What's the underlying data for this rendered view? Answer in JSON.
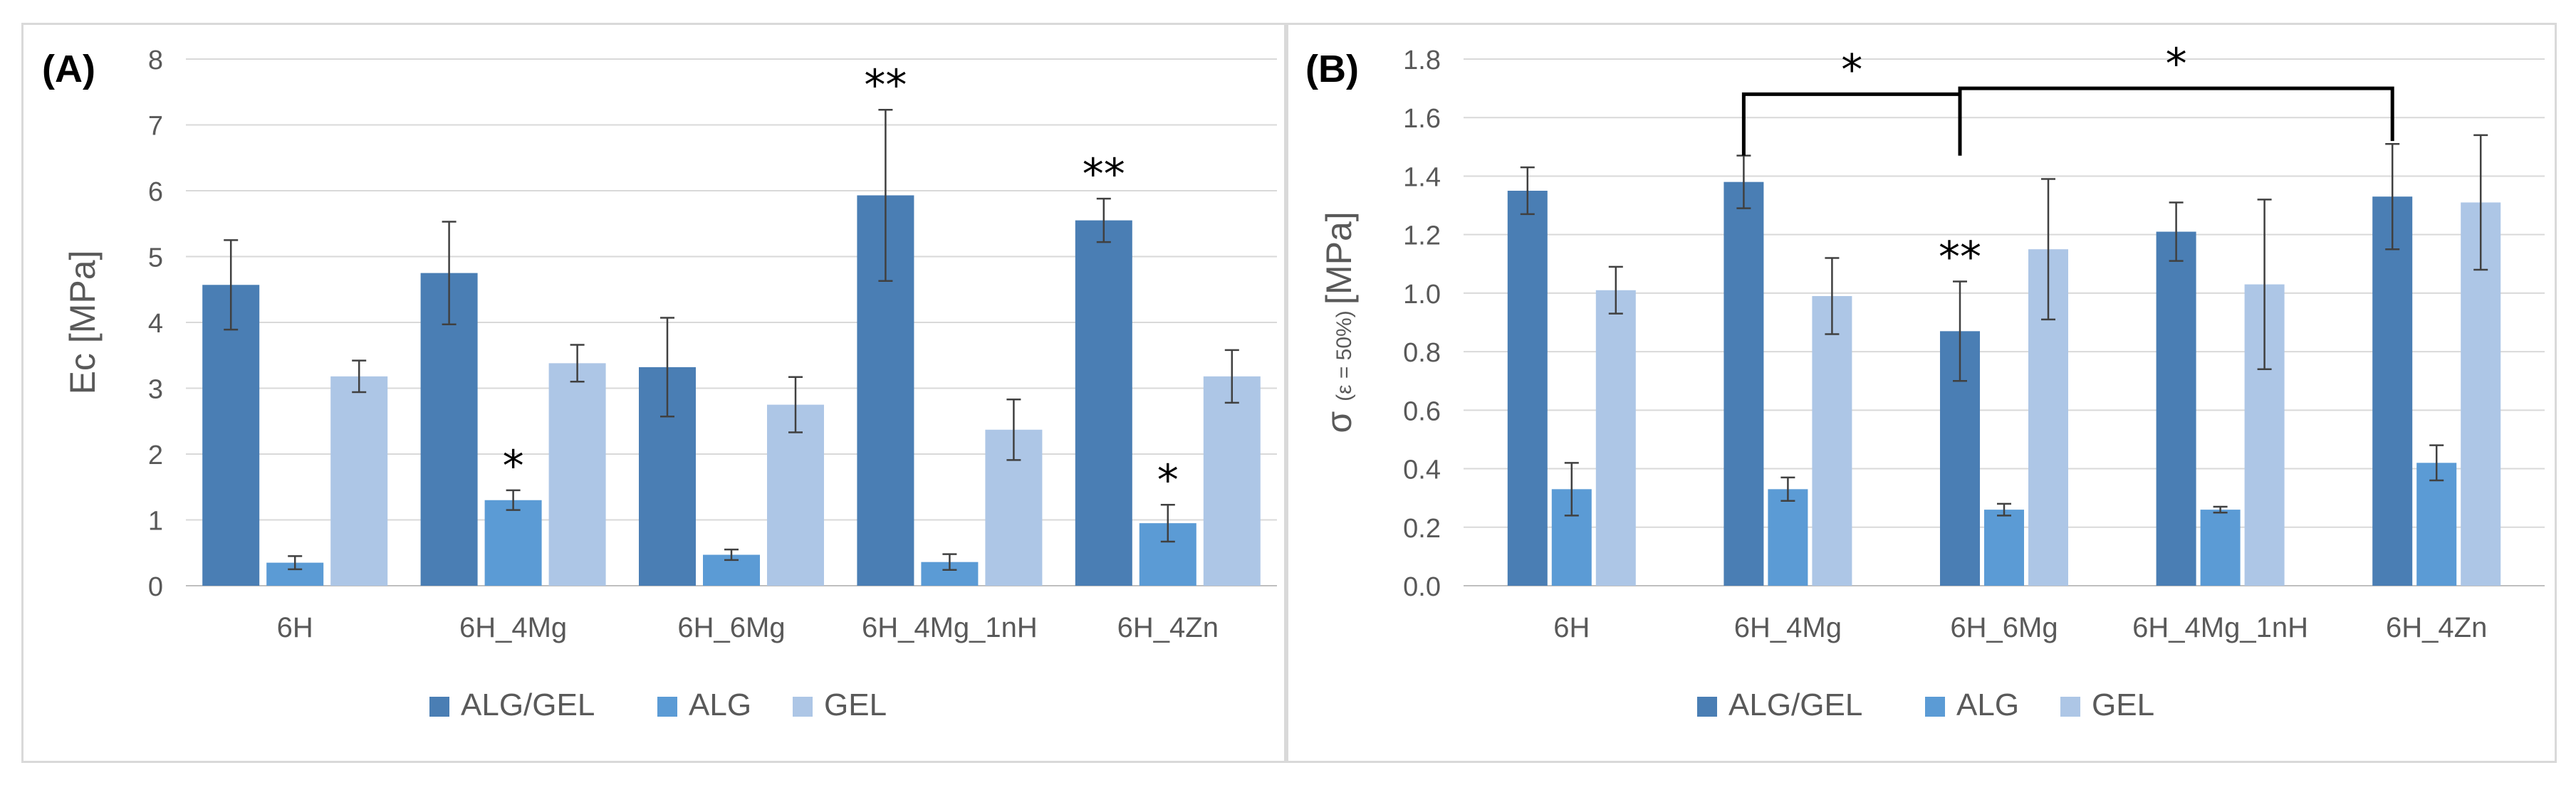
{
  "colors": {
    "ALG/GEL": "#4a7eb4",
    "ALG": "#5b9bd5",
    "GEL": "#adc6e6",
    "grid": "#d9d9d9",
    "text": "#595959",
    "error": "#404040"
  },
  "chart_data": [
    {
      "type": "bar",
      "panel_label": "(A)",
      "ylabel": "Ec [MPa]",
      "xlabel": "",
      "ylim": [
        0,
        8
      ],
      "yticks": [
        "0",
        "1",
        "2",
        "3",
        "4",
        "5",
        "6",
        "7",
        "8"
      ],
      "categories": [
        "6H",
        "6H_4Mg",
        "6H_6Mg",
        "6H_4Mg_1nH",
        "6H_4Zn"
      ],
      "series": [
        {
          "name": "ALG/GEL",
          "values": [
            4.57,
            4.75,
            3.32,
            5.93,
            5.55
          ],
          "errors": [
            0.68,
            0.78,
            0.75,
            1.3,
            0.33
          ]
        },
        {
          "name": "ALG",
          "values": [
            0.35,
            1.3,
            0.47,
            0.36,
            0.95
          ],
          "errors": [
            0.1,
            0.15,
            0.08,
            0.12,
            0.28
          ]
        },
        {
          "name": "GEL",
          "values": [
            3.18,
            3.38,
            2.75,
            2.37,
            3.18
          ],
          "errors": [
            0.24,
            0.28,
            0.42,
            0.46,
            0.4
          ]
        }
      ],
      "annotations": [
        {
          "text": "*",
          "series": "ALG",
          "category": "6H_4Mg",
          "level": 1.45
        },
        {
          "text": "**",
          "series": "ALG/GEL",
          "category": "6H_4Mg_1nH",
          "level": 7.23
        },
        {
          "text": "**",
          "series": "ALG/GEL",
          "category": "6H_4Zn",
          "level": 5.88
        },
        {
          "text": "*",
          "series": "ALG",
          "category": "6H_4Zn",
          "level": 1.23
        }
      ],
      "brackets": [],
      "legend": {
        "position": "bottom",
        "entries": [
          "ALG/GEL",
          "ALG",
          "GEL"
        ]
      }
    },
    {
      "type": "bar",
      "panel_label": "(B)",
      "ylabel": "σ",
      "ylabel_sub": "(ε = 50%)",
      "ylabel_unit": "[MPa]",
      "xlabel": "",
      "ylim": [
        0,
        1.8
      ],
      "yticks": [
        "0.0",
        "0.2",
        "0.4",
        "0.6",
        "0.8",
        "1.0",
        "1.2",
        "1.4",
        "1.6",
        "1.8"
      ],
      "categories": [
        "6H",
        "6H_4Mg",
        "6H_6Mg",
        "6H_4Mg_1nH",
        "6H_4Zn"
      ],
      "series": [
        {
          "name": "ALG/GEL",
          "values": [
            1.35,
            1.38,
            0.87,
            1.21,
            1.33
          ],
          "errors": [
            0.08,
            0.09,
            0.17,
            0.1,
            0.18
          ]
        },
        {
          "name": "ALG",
          "values": [
            0.33,
            0.33,
            0.26,
            0.26,
            0.42
          ],
          "errors": [
            0.09,
            0.04,
            0.02,
            0.01,
            0.06
          ]
        },
        {
          "name": "GEL",
          "values": [
            1.01,
            0.99,
            1.15,
            1.03,
            1.31
          ],
          "errors": [
            0.08,
            0.13,
            0.24,
            0.29,
            0.23
          ]
        }
      ],
      "annotations": [
        {
          "text": "**",
          "series": "ALG/GEL",
          "category": "6H_6Mg",
          "level": 1.04
        }
      ],
      "brackets": [
        {
          "text": "*",
          "from_category": "6H_4Mg",
          "from_series": "ALG/GEL",
          "to_category": "6H_6Mg",
          "to_series": "ALG/GEL",
          "level": 1.68,
          "drop_to": [
            1.47,
            1.47
          ]
        },
        {
          "text": "*",
          "from_category": "6H_6Mg",
          "from_series": "ALG/GEL",
          "to_category": "6H_4Zn",
          "to_series": "ALG/GEL",
          "level": 1.7,
          "drop_to": [
            1.47,
            1.52
          ]
        }
      ],
      "legend": {
        "position": "bottom",
        "entries": [
          "ALG/GEL",
          "ALG",
          "GEL"
        ]
      }
    }
  ]
}
